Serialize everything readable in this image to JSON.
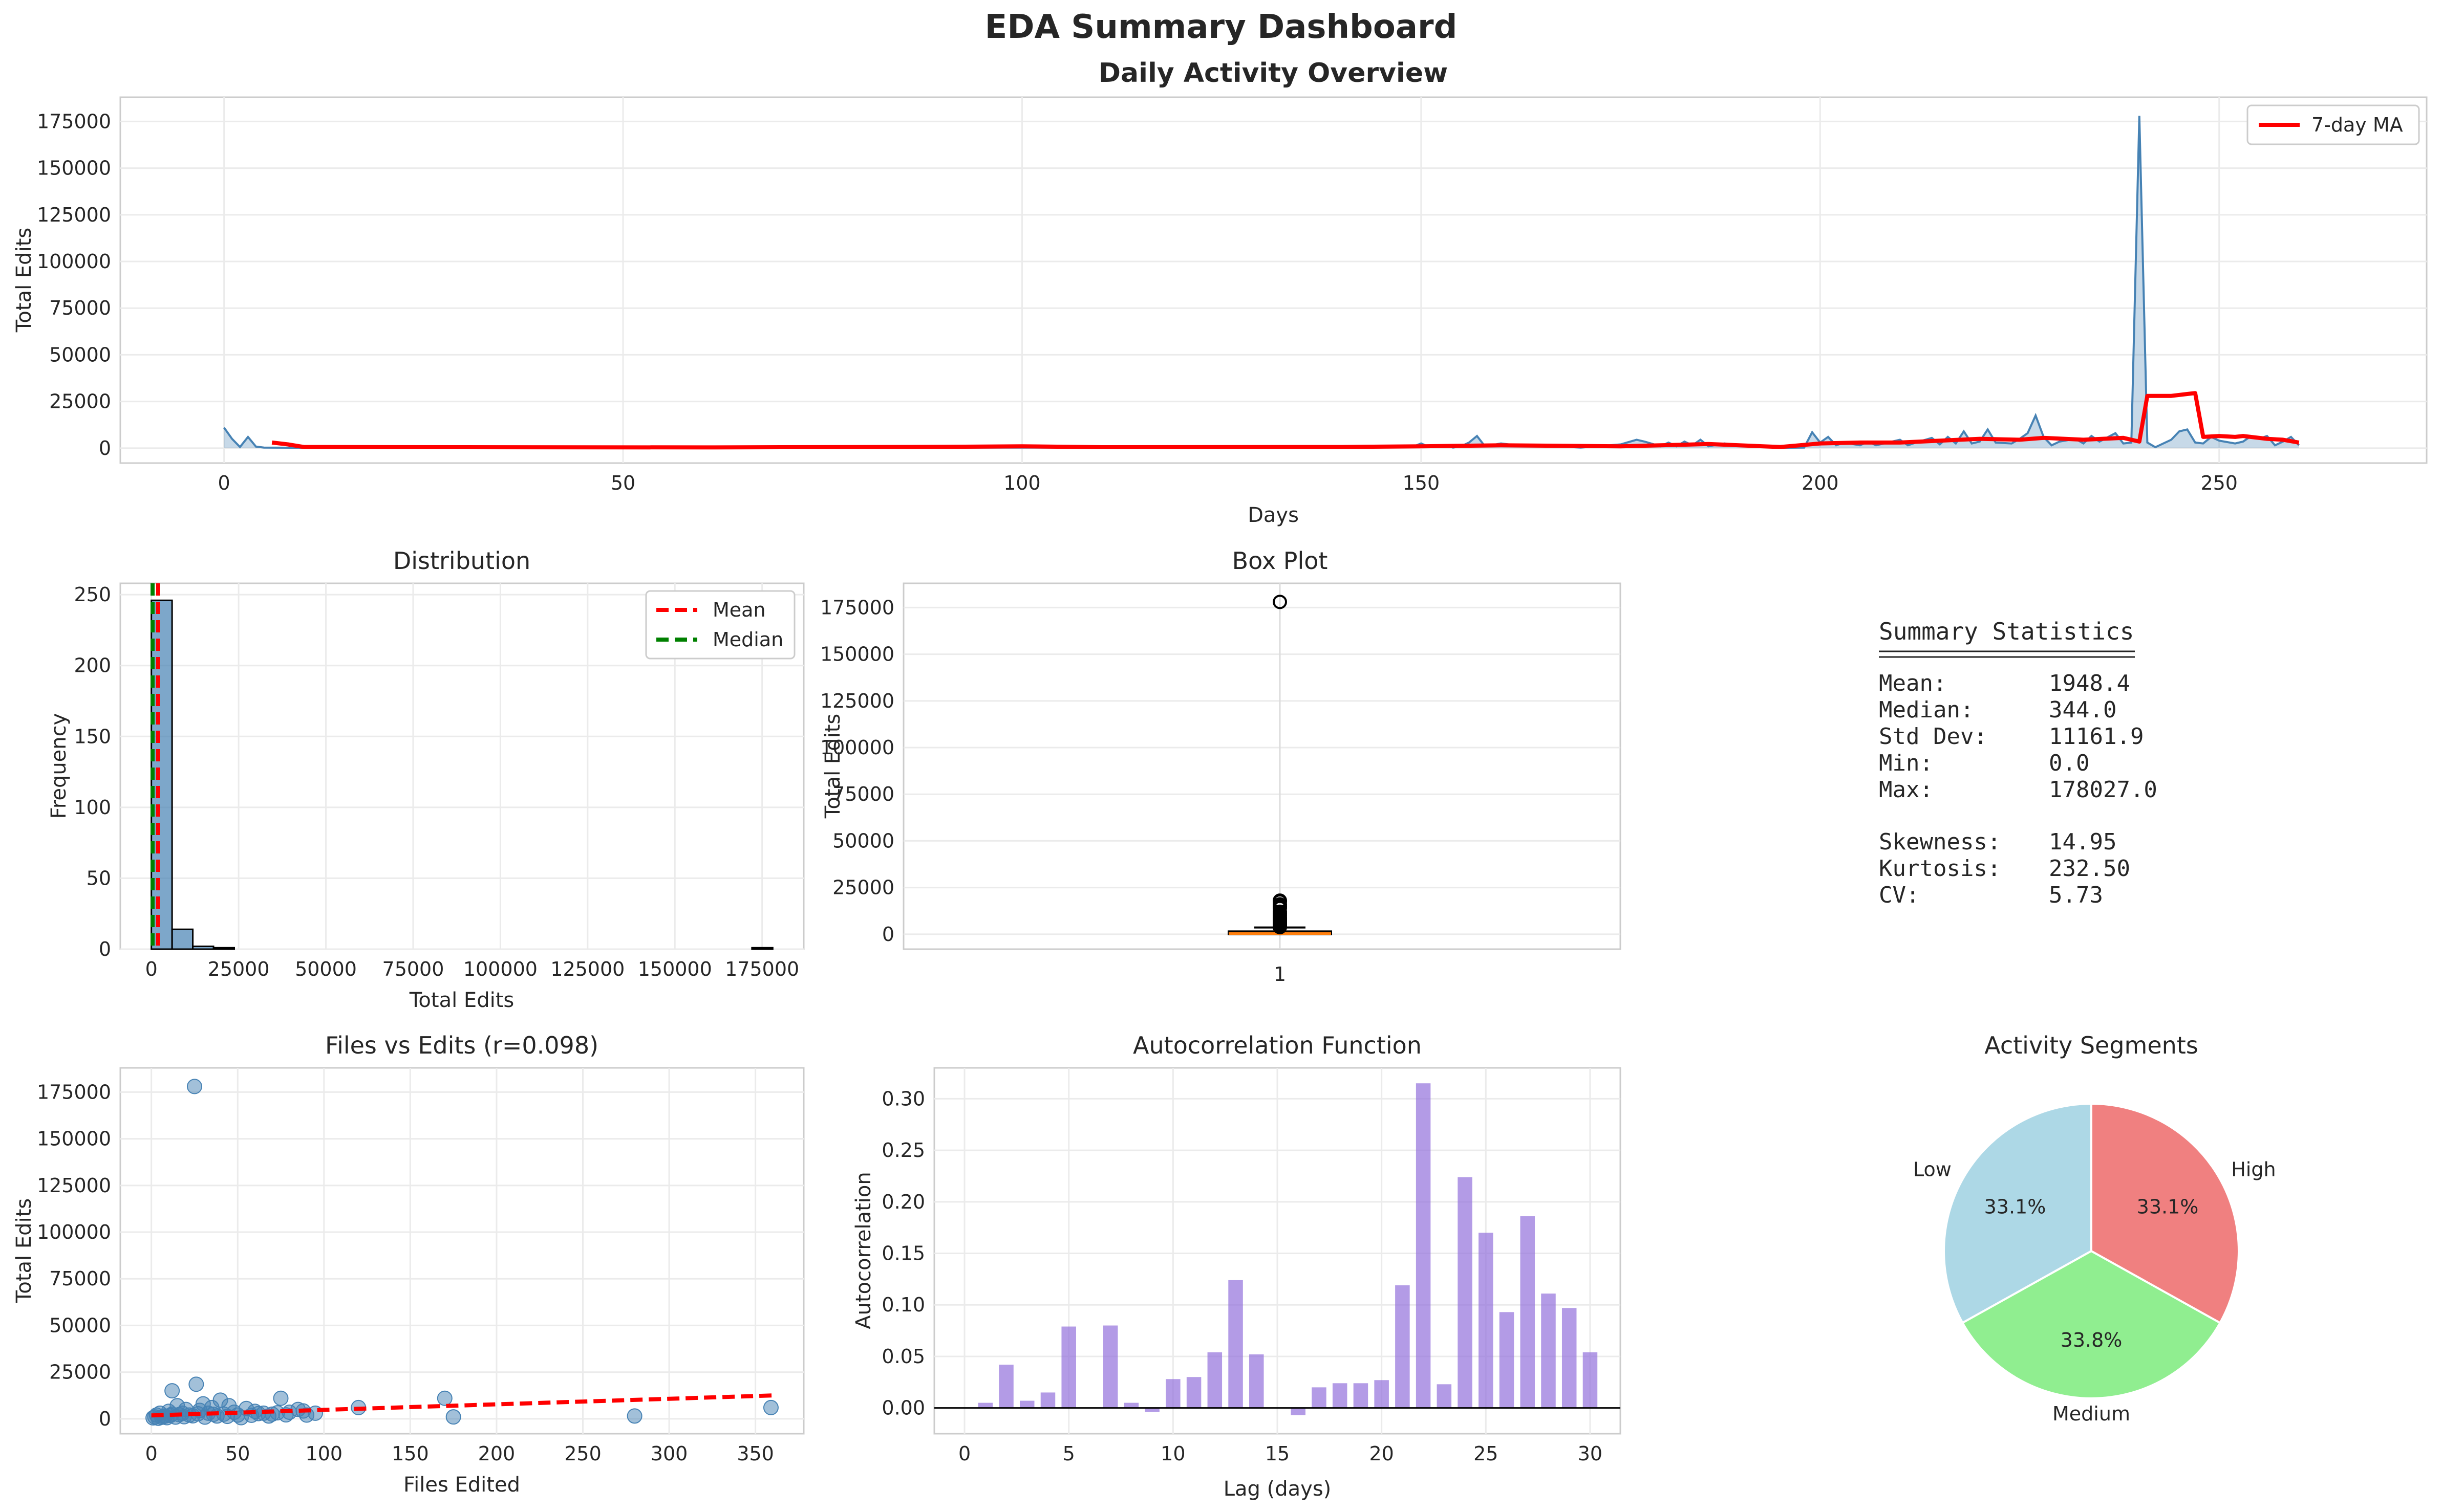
{
  "suptitle": "EDA Summary Dashboard",
  "colors": {
    "steel": "#4682b4",
    "red": "#ff0000",
    "green": "#008000",
    "purple": "#9370db",
    "orange": "#ff7f0e"
  },
  "activity": {
    "title": "Daily Activity Overview",
    "xlabel": "Days",
    "ylabel": "Total Edits",
    "xticks": [
      "0",
      "50",
      "100",
      "150",
      "200",
      "250"
    ],
    "yticks": [
      "0",
      "25000",
      "50000",
      "75000",
      "100000",
      "125000",
      "150000",
      "175000"
    ],
    "legend": "7-day MA",
    "chart_data": {
      "type": "area",
      "xlim": [
        -13,
        276
      ],
      "ylim": [
        -8000,
        188000
      ],
      "series": [
        {
          "key": "daily",
          "points": [
            [
              0,
              11000
            ],
            [
              1,
              5000
            ],
            [
              2,
              600
            ],
            [
              3,
              6000
            ],
            [
              4,
              800
            ],
            [
              5,
              300
            ],
            [
              10,
              200
            ],
            [
              30,
              300
            ],
            [
              60,
              200
            ],
            [
              100,
              300
            ],
            [
              140,
              300
            ],
            [
              149,
              800
            ],
            [
              150,
              2500
            ],
            [
              151,
              600
            ],
            [
              153,
              1500
            ],
            [
              154,
              300
            ],
            [
              155,
              1000
            ],
            [
              156,
              3000
            ],
            [
              157,
              6500
            ],
            [
              158,
              1000
            ],
            [
              160,
              2500
            ],
            [
              162,
              1500
            ],
            [
              165,
              1500
            ],
            [
              170,
              300
            ],
            [
              175,
              2000
            ],
            [
              177,
              4500
            ],
            [
              178,
              3500
            ],
            [
              180,
              1000
            ],
            [
              181,
              3000
            ],
            [
              182,
              1000
            ],
            [
              183,
              3500
            ],
            [
              184,
              1500
            ],
            [
              185,
              4500
            ],
            [
              186,
              1000
            ],
            [
              188,
              2500
            ],
            [
              190,
              1500
            ],
            [
              195,
              200
            ],
            [
              198,
              300
            ],
            [
              199,
              8500
            ],
            [
              200,
              3000
            ],
            [
              201,
              6000
            ],
            [
              202,
              1500
            ],
            [
              203,
              3000
            ],
            [
              205,
              1500
            ],
            [
              206,
              3500
            ],
            [
              207,
              1500
            ],
            [
              208,
              2500
            ],
            [
              210,
              4500
            ],
            [
              211,
              1500
            ],
            [
              212,
              3000
            ],
            [
              214,
              5500
            ],
            [
              215,
              2000
            ],
            [
              216,
              6000
            ],
            [
              217,
              2500
            ],
            [
              218,
              9000
            ],
            [
              219,
              2500
            ],
            [
              220,
              3500
            ],
            [
              221,
              10000
            ],
            [
              222,
              3000
            ],
            [
              224,
              2500
            ],
            [
              225,
              5000
            ],
            [
              226,
              8000
            ],
            [
              227,
              17500
            ],
            [
              228,
              6000
            ],
            [
              229,
              1500
            ],
            [
              230,
              3500
            ],
            [
              232,
              5000
            ],
            [
              233,
              2500
            ],
            [
              234,
              6500
            ],
            [
              235,
              3500
            ],
            [
              237,
              8000
            ],
            [
              238,
              2500
            ],
            [
              239,
              3000
            ],
            [
              240,
              178027
            ],
            [
              241,
              3000
            ],
            [
              242,
              500
            ],
            [
              244,
              4500
            ],
            [
              245,
              9000
            ],
            [
              246,
              10000
            ],
            [
              247,
              3000
            ],
            [
              248,
              2500
            ],
            [
              249,
              6000
            ],
            [
              250,
              4000
            ],
            [
              252,
              2500
            ],
            [
              253,
              3500
            ],
            [
              254,
              6500
            ],
            [
              255,
              5000
            ],
            [
              256,
              6500
            ],
            [
              257,
              1500
            ],
            [
              258,
              3500
            ],
            [
              259,
              6000
            ],
            [
              260,
              1500
            ]
          ]
        },
        {
          "key": "ma7",
          "points": [
            [
              6,
              3000
            ],
            [
              8,
              2000
            ],
            [
              10,
              600
            ],
            [
              30,
              500
            ],
            [
              60,
              400
            ],
            [
              90,
              700
            ],
            [
              100,
              1000
            ],
            [
              110,
              500
            ],
            [
              140,
              600
            ],
            [
              150,
              1000
            ],
            [
              160,
              1500
            ],
            [
              175,
              1000
            ],
            [
              180,
              1500
            ],
            [
              186,
              2200
            ],
            [
              195,
              600
            ],
            [
              200,
              2500
            ],
            [
              205,
              3000
            ],
            [
              210,
              3000
            ],
            [
              215,
              4000
            ],
            [
              220,
              5000
            ],
            [
              225,
              4500
            ],
            [
              228,
              5500
            ],
            [
              233,
              4500
            ],
            [
              238,
              5500
            ],
            [
              240,
              3500
            ],
            [
              241,
              28000
            ],
            [
              244,
              28000
            ],
            [
              246,
              29000
            ],
            [
              247,
              29500
            ],
            [
              248,
              6000
            ],
            [
              250,
              6500
            ],
            [
              252,
              6000
            ],
            [
              253,
              6500
            ],
            [
              256,
              5000
            ],
            [
              258,
              4500
            ],
            [
              260,
              3000
            ]
          ]
        }
      ]
    }
  },
  "hist": {
    "title": "Distribution",
    "xlabel": "Total Edits",
    "ylabel": "Frequency",
    "xticks": [
      "0",
      "25000",
      "50000",
      "75000",
      "100000",
      "125000",
      "150000",
      "175000"
    ],
    "yticks": [
      "0",
      "50",
      "100",
      "150",
      "200",
      "250"
    ],
    "legend": [
      "Mean",
      "Median"
    ],
    "chart_data": {
      "type": "bar",
      "xlim": [
        -8901,
        186928
      ],
      "ylim": [
        0,
        258
      ],
      "bin_edges": [
        0,
        5934,
        11868,
        17802,
        23736
      ],
      "counts": [
        246,
        14,
        2,
        1
      ],
      "outlier_bin": {
        "left": 172093,
        "right": 178027,
        "count": 1
      },
      "mean": 1948.4,
      "median": 344.0
    }
  },
  "box": {
    "title": "Box Plot",
    "ylabel": "Total Edits",
    "xticks": [
      "1"
    ],
    "yticks": [
      "0",
      "25000",
      "50000",
      "75000",
      "100000",
      "125000",
      "150000",
      "175000"
    ],
    "chart_data": {
      "type": "box",
      "ylim": [
        -8000,
        188000
      ],
      "q1": 60,
      "median": 344,
      "q3": 1500,
      "whisker_low": 0,
      "whisker_high": 3600,
      "fliers": [
        178027,
        18000,
        17500,
        16000,
        15000,
        14000,
        12000,
        11000,
        10000,
        9000,
        8500,
        8000,
        7500,
        7000,
        6500,
        6000,
        5500,
        5000,
        4500,
        4200,
        4000,
        3800
      ]
    }
  },
  "stats": {
    "title": "Summary Statistics",
    "rows": [
      {
        "label": "Mean:",
        "value": "1948.4"
      },
      {
        "label": "Median:",
        "value": "344.0"
      },
      {
        "label": "Std Dev:",
        "value": "11161.9"
      },
      {
        "label": "Min:",
        "value": "0.0"
      },
      {
        "label": "Max:",
        "value": "178027.0"
      },
      {
        "label": "Skewness:",
        "value": "14.95"
      },
      {
        "label": "Kurtosis:",
        "value": "232.50"
      },
      {
        "label": "CV:",
        "value": "5.73"
      }
    ]
  },
  "scatter": {
    "title": "Files vs Edits (r=0.098)",
    "xlabel": "Files Edited",
    "ylabel": "Total Edits",
    "xticks": [
      "0",
      "50",
      "100",
      "150",
      "200",
      "250",
      "300",
      "350"
    ],
    "yticks": [
      "0",
      "25000",
      "50000",
      "75000",
      "100000",
      "125000",
      "150000",
      "175000"
    ],
    "chart_data": {
      "type": "scatter",
      "xlim": [
        -18,
        378
      ],
      "ylim": [
        -8000,
        188000
      ],
      "points": [
        [
          25,
          178027
        ],
        [
          26,
          18500
        ],
        [
          12,
          15000
        ],
        [
          170,
          11000
        ],
        [
          75,
          11000
        ],
        [
          40,
          10000
        ],
        [
          359,
          6000
        ],
        [
          120,
          6000
        ],
        [
          85,
          5000
        ],
        [
          95,
          3000
        ],
        [
          55,
          5500
        ],
        [
          60,
          4000
        ],
        [
          45,
          7000
        ],
        [
          35,
          6000
        ],
        [
          30,
          8000
        ],
        [
          20,
          5000
        ],
        [
          15,
          7000
        ],
        [
          10,
          4000
        ],
        [
          5,
          3000
        ],
        [
          2,
          1000
        ],
        [
          1,
          500
        ],
        [
          3,
          2000
        ],
        [
          8,
          1500
        ],
        [
          12,
          2500
        ],
        [
          18,
          3000
        ],
        [
          22,
          2000
        ],
        [
          28,
          4500
        ],
        [
          33,
          3000
        ],
        [
          38,
          1500
        ],
        [
          42,
          2500
        ],
        [
          48,
          3500
        ],
        [
          50,
          2000
        ],
        [
          65,
          3000
        ],
        [
          70,
          2500
        ],
        [
          80,
          3500
        ],
        [
          90,
          2000
        ],
        [
          175,
          1000
        ],
        [
          280,
          1500
        ],
        [
          4,
          300
        ],
        [
          6,
          800
        ],
        [
          7,
          1200
        ],
        [
          9,
          600
        ],
        [
          11,
          1800
        ],
        [
          14,
          900
        ],
        [
          16,
          2200
        ],
        [
          19,
          1100
        ],
        [
          24,
          1600
        ],
        [
          27,
          2700
        ],
        [
          31,
          900
        ],
        [
          36,
          2400
        ],
        [
          44,
          1300
        ],
        [
          52,
          600
        ],
        [
          58,
          1900
        ],
        [
          62,
          2800
        ],
        [
          68,
          1500
        ],
        [
          73,
          3200
        ],
        [
          78,
          2100
        ],
        [
          88,
          4200
        ]
      ],
      "trend": {
        "x": [
          0,
          360
        ],
        "y": [
          1800,
          12500
        ]
      }
    }
  },
  "acf": {
    "title": "Autocorrelation Function",
    "xlabel": "Lag (days)",
    "ylabel": "Autocorrelation",
    "xticks": [
      "0",
      "5",
      "10",
      "15",
      "20",
      "25",
      "30"
    ],
    "yticks": [
      "0.00",
      "0.05",
      "0.10",
      "0.15",
      "0.20",
      "0.25",
      "0.30"
    ],
    "chart_data": {
      "type": "bar",
      "xlim": [
        -1.45,
        31.45
      ],
      "ylim": [
        -0.025,
        0.33
      ],
      "lags": [
        1,
        2,
        3,
        4,
        5,
        6,
        7,
        8,
        9,
        10,
        11,
        12,
        13,
        14,
        15,
        16,
        17,
        18,
        19,
        20,
        21,
        22,
        23,
        24,
        25,
        26,
        27,
        28,
        29,
        30
      ],
      "values": [
        0.005,
        0.042,
        0.007,
        0.015,
        0.079,
        0.0,
        0.08,
        0.005,
        -0.004,
        0.028,
        0.03,
        0.054,
        0.124,
        0.052,
        0.0,
        -0.007,
        0.02,
        0.024,
        0.024,
        0.027,
        0.119,
        0.315,
        0.023,
        0.224,
        0.17,
        0.093,
        0.186,
        0.111,
        0.097,
        0.054
      ]
    }
  },
  "pie": {
    "title": "Activity Segments",
    "chart_data": {
      "type": "pie",
      "slices": [
        {
          "label": "Low",
          "value": 33.1,
          "pct": "33.1%",
          "color": "#add8e6"
        },
        {
          "label": "Medium",
          "value": 33.8,
          "pct": "33.8%",
          "color": "#90ee90"
        },
        {
          "label": "High",
          "value": 33.1,
          "pct": "33.1%",
          "color": "#f08080"
        }
      ]
    }
  }
}
